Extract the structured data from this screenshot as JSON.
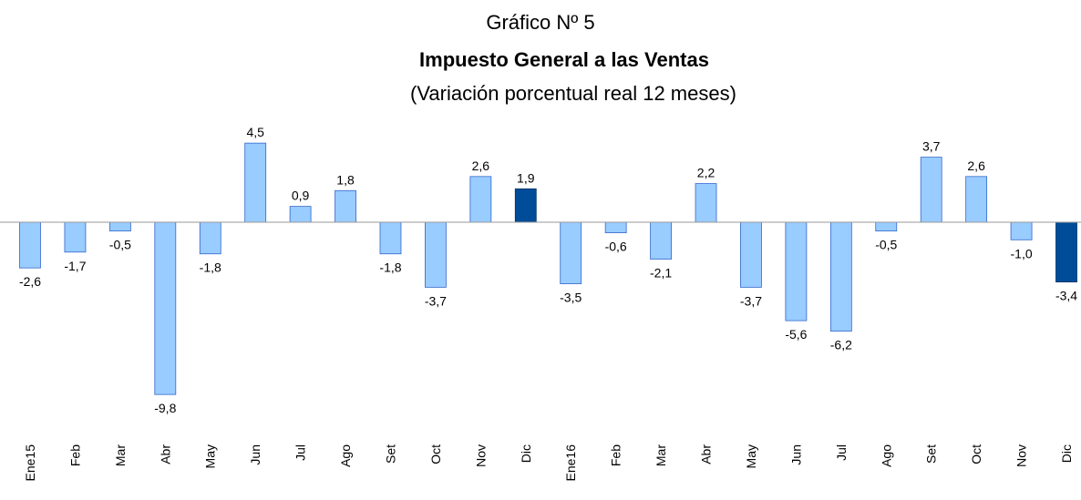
{
  "chart_data": {
    "type": "bar",
    "title": "Gráfico Nº 5",
    "subtitle": "Impuesto General a las Ventas",
    "subtitle2": "(Variación porcentual real 12 meses)",
    "categories": [
      "Ene15",
      "Feb",
      "Mar",
      "Abr",
      "May",
      "Jun",
      "Jul",
      "Ago",
      "Set",
      "Oct",
      "Nov",
      "Dic",
      "Ene16",
      "Feb",
      "Mar",
      "Abr",
      "May",
      "Jun",
      "Jul",
      "Ago",
      "Set",
      "Oct",
      "Nov",
      "Dic"
    ],
    "values": [
      -2.6,
      -1.7,
      -0.5,
      -9.8,
      -1.8,
      4.5,
      0.9,
      1.8,
      -1.8,
      -3.7,
      2.6,
      1.9,
      -3.5,
      -0.6,
      -2.1,
      2.2,
      -3.7,
      -5.6,
      -6.2,
      -0.5,
      3.7,
      2.6,
      -1.0,
      -3.4
    ],
    "value_labels": [
      "-2,6",
      "-1,7",
      "-0,5",
      "-9,8",
      "-1,8",
      "4,5",
      "0,9",
      "1,8",
      "-1,8",
      "-3,7",
      "2,6",
      "1,9",
      "-3,5",
      "-0,6",
      "-2,1",
      "2,2",
      "-3,7",
      "-5,6",
      "-6,2",
      "-0,5",
      "3,7",
      "2,6",
      "-1,0",
      "-3,4"
    ],
    "colors": [
      "#99ccff",
      "#99ccff",
      "#99ccff",
      "#99ccff",
      "#99ccff",
      "#99ccff",
      "#99ccff",
      "#99ccff",
      "#99ccff",
      "#99ccff",
      "#99ccff",
      "#004c99",
      "#99ccff",
      "#99ccff",
      "#99ccff",
      "#99ccff",
      "#99ccff",
      "#99ccff",
      "#99ccff",
      "#99ccff",
      "#99ccff",
      "#99ccff",
      "#99ccff",
      "#004c99"
    ],
    "ylim": [
      -10,
      5
    ]
  }
}
